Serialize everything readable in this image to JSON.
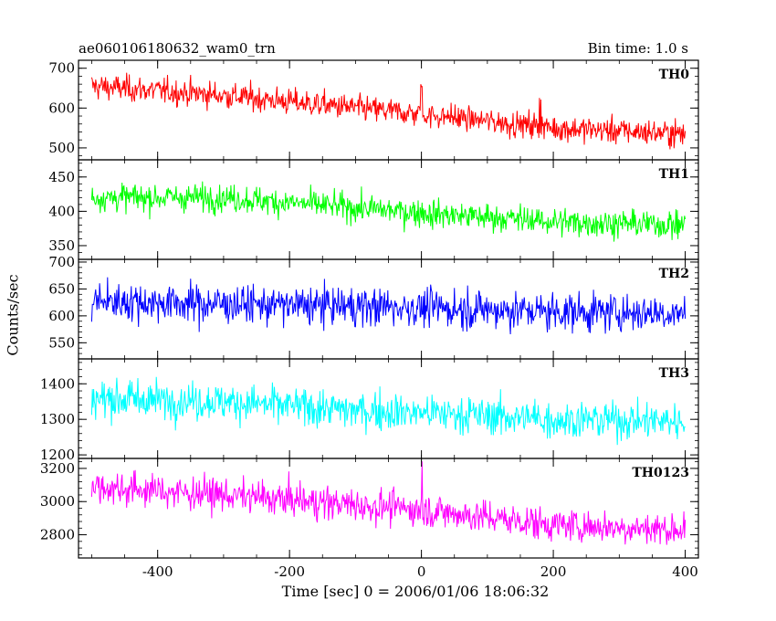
{
  "chart_data": {
    "type": "line",
    "title": "ae060106180632_wam0_trn",
    "subtitle": "Bin time: 1.0 s",
    "xlabel": "Time [sec] 0 = 2006/01/06 18:06:32",
    "ylabel": "Counts/sec",
    "xlim": [
      -520,
      420
    ],
    "xticks": [
      -400,
      -200,
      0,
      200,
      400
    ],
    "x_range": [
      -500,
      400
    ],
    "grid": false,
    "panels": [
      {
        "name": "TH0",
        "color": "#ff0000",
        "ylim": [
          470,
          720
        ],
        "yticks": [
          500,
          600,
          700
        ],
        "trend": [
          [
            -500,
            655
          ],
          [
            -300,
            632
          ],
          [
            -100,
            600
          ],
          [
            0,
            585
          ],
          [
            200,
            550
          ],
          [
            400,
            535
          ]
        ],
        "noise": 28,
        "spikes": [
          [
            0,
            655
          ],
          [
            180,
            625
          ]
        ]
      },
      {
        "name": "TH1",
        "color": "#00ff00",
        "ylim": [
          330,
          475
        ],
        "yticks": [
          350,
          400,
          450
        ],
        "trend": [
          [
            -500,
            420
          ],
          [
            -300,
            420
          ],
          [
            -100,
            405
          ],
          [
            0,
            398
          ],
          [
            200,
            385
          ],
          [
            400,
            380
          ]
        ],
        "noise": 17,
        "spikes": [
          [
            0,
            470
          ]
        ]
      },
      {
        "name": "TH2",
        "color": "#0000ff",
        "ylim": [
          520,
          705
        ],
        "yticks": [
          550,
          600,
          650,
          700
        ],
        "trend": [
          [
            -500,
            628
          ],
          [
            -300,
            622
          ],
          [
            -100,
            618
          ],
          [
            0,
            615
          ],
          [
            200,
            608
          ],
          [
            400,
            605
          ]
        ],
        "noise": 30,
        "spikes": []
      },
      {
        "name": "TH3",
        "color": "#00ffff",
        "ylim": [
          1190,
          1470
        ],
        "yticks": [
          1200,
          1300,
          1400
        ],
        "trend": [
          [
            -500,
            1360
          ],
          [
            -300,
            1350
          ],
          [
            -100,
            1325
          ],
          [
            0,
            1320
          ],
          [
            200,
            1300
          ],
          [
            400,
            1295
          ]
        ],
        "noise": 45,
        "spikes": []
      },
      {
        "name": "TH0123",
        "color": "#ff00ff",
        "ylim": [
          2660,
          3260
        ],
        "yticks": [
          2800,
          3000,
          3200
        ],
        "trend": [
          [
            -500,
            3090
          ],
          [
            -300,
            3040
          ],
          [
            -100,
            2980
          ],
          [
            0,
            2950
          ],
          [
            200,
            2860
          ],
          [
            400,
            2830
          ]
        ],
        "noise": 85,
        "spikes": [
          [
            0,
            3230
          ]
        ]
      }
    ]
  }
}
